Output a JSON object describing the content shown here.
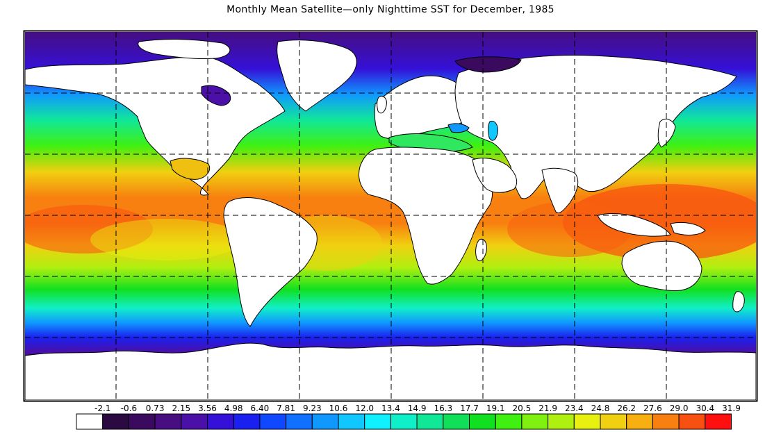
{
  "title": "Monthly Mean Satellite—only Nighttime SST for December, 1985",
  "colorbar": {
    "tick_labels": [
      "-2.1",
      "-0.6",
      "0.73",
      "2.15",
      "3.56",
      "4.98",
      "6.40",
      "7.81",
      "9.23",
      "10.6",
      "12.0",
      "13.4",
      "14.9",
      "16.3",
      "17.7",
      "19.1",
      "20.5",
      "21.9",
      "23.4",
      "24.8",
      "26.2",
      "27.6",
      "29.0",
      "30.4",
      "31.9"
    ],
    "colors": [
      "#ffffff",
      "#2a0a40",
      "#3a0a5e",
      "#460e80",
      "#4a10a8",
      "#3510d8",
      "#1a20f0",
      "#1048ff",
      "#1070ff",
      "#1098ff",
      "#10c8ff",
      "#10f0ff",
      "#10f0c8",
      "#10e898",
      "#10e058",
      "#10e020",
      "#40f010",
      "#80f010",
      "#b0f010",
      "#e8f010",
      "#f0d010",
      "#f8b010",
      "#f88010",
      "#f85010",
      "#ff1010"
    ]
  },
  "map": {
    "projection": "equirectangular",
    "graticule": "dashed",
    "land_color": "#ffffff",
    "labels": []
  }
}
